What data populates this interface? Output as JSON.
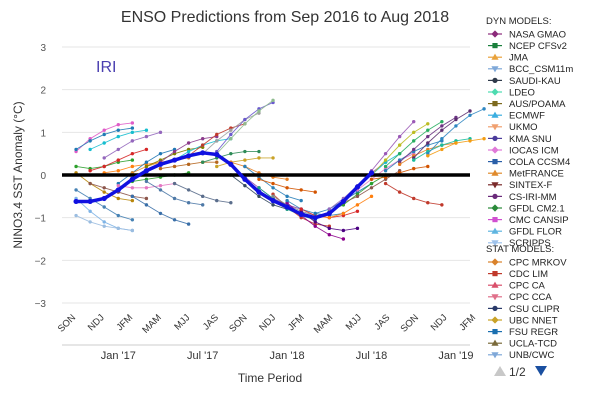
{
  "chart_data": {
    "type": "line",
    "title": "ENSO Predictions from Sep 2016 to Aug 2018",
    "xlabel": "Time Period",
    "ylabel": "NINO3.4 SST Anomaly (°C)",
    "ylim": [
      -3,
      3
    ],
    "yticks": [
      -3,
      -2,
      -1,
      0,
      1,
      2,
      3
    ],
    "season_labels": [
      "SON",
      "NDJ",
      "JFM",
      "MAM",
      "MJJ",
      "JAS",
      "SON",
      "NDJ",
      "JFM",
      "MAM",
      "MJJ",
      "JAS",
      "SON",
      "NDJ",
      "JFM"
    ],
    "month_labels": [
      {
        "label": "Jan '17",
        "month_index": 4
      },
      {
        "label": "Jul '17",
        "month_index": 10
      },
      {
        "label": "Jan '18",
        "month_index": 16
      },
      {
        "label": "Jul '18",
        "month_index": 22
      },
      {
        "label": "Jan '19",
        "month_index": 28
      }
    ],
    "month_index_range": [
      0,
      29
    ],
    "zero_line": 0,
    "watermark": "IRI",
    "observed": {
      "color": "#1010e0",
      "points": [
        [
          1,
          -0.62
        ],
        [
          2,
          -0.62
        ],
        [
          3,
          -0.55
        ],
        [
          4,
          -0.35
        ],
        [
          5,
          -0.1
        ],
        [
          6,
          0.1
        ],
        [
          7,
          0.25
        ],
        [
          8,
          0.35
        ],
        [
          9,
          0.45
        ],
        [
          10,
          0.52
        ],
        [
          11,
          0.48
        ],
        [
          12,
          0.25
        ],
        [
          13,
          -0.1
        ],
        [
          14,
          -0.4
        ],
        [
          15,
          -0.6
        ],
        [
          16,
          -0.75
        ],
        [
          17,
          -0.92
        ],
        [
          18,
          -1.0
        ],
        [
          19,
          -0.9
        ],
        [
          20,
          -0.62
        ],
        [
          21,
          -0.28
        ],
        [
          22,
          0.05
        ]
      ]
    },
    "model_runs": [
      {
        "start": 1,
        "values": [
          0.55,
          0.85,
          1.05,
          1.18,
          1.22
        ],
        "color": "#e05cc8"
      },
      {
        "start": 1,
        "values": [
          0.6,
          0.8,
          0.95,
          1.05,
          1.1
        ],
        "color": "#1f7ab4"
      },
      {
        "start": 1,
        "values": [
          0.2,
          0.15,
          0.2,
          0.3,
          0.35
        ],
        "color": "#2ca02c"
      },
      {
        "start": 1,
        "values": [
          -0.35,
          -0.55,
          -0.75,
          -0.95,
          -1.05
        ],
        "color": "#4682b4"
      },
      {
        "start": 1,
        "values": [
          -0.55,
          -0.85,
          -1.1,
          -1.25,
          -1.3
        ],
        "color": "#7fb4e6"
      },
      {
        "start": 1,
        "values": [
          0.05,
          -0.2,
          -0.4,
          -0.55,
          -0.6
        ],
        "color": "#b8860b"
      },
      {
        "start": 1,
        "values": [
          -0.95,
          -1.1,
          -1.2,
          -1.25,
          -1.3
        ],
        "color": "#9bbde0"
      },
      {
        "start": 2,
        "values": [
          0.1,
          0.2,
          0.35,
          0.5,
          0.6
        ],
        "color": "#d62728"
      },
      {
        "start": 2,
        "values": [
          -0.2,
          -0.3,
          -0.4,
          -0.5,
          -0.55
        ],
        "color": "#8c564b"
      },
      {
        "start": 2,
        "values": [
          0.6,
          0.75,
          0.9,
          1.0,
          1.05
        ],
        "color": "#17becf"
      },
      {
        "start": 3,
        "values": [
          0.05,
          0.1,
          0.2,
          0.25,
          0.3
        ],
        "color": "#ff7f0e"
      },
      {
        "start": 3,
        "values": [
          0.4,
          0.6,
          0.8,
          0.9,
          1.0
        ],
        "color": "#9467bd"
      },
      {
        "start": 4,
        "values": [
          -0.2,
          0.05,
          0.3,
          0.5,
          0.6
        ],
        "color": "#1f77b4"
      },
      {
        "start": 4,
        "values": [
          -0.25,
          -0.3,
          -0.3,
          -0.25,
          -0.2
        ],
        "color": "#e377c2"
      },
      {
        "start": 5,
        "values": [
          0.05,
          0.2,
          0.3,
          0.35,
          0.4
        ],
        "color": "#e08a2c"
      },
      {
        "start": 5,
        "values": [
          -0.15,
          -0.1,
          -0.05,
          0.0,
          0.05
        ],
        "color": "#2ca02c"
      },
      {
        "start": 5,
        "values": [
          -0.5,
          -0.7,
          -0.9,
          -1.05,
          -1.15
        ],
        "color": "#3a6fa8"
      },
      {
        "start": 6,
        "values": [
          0.2,
          0.35,
          0.5,
          0.6,
          0.65
        ],
        "color": "#808000"
      },
      {
        "start": 6,
        "values": [
          -0.15,
          -0.35,
          -0.55,
          -0.65,
          -0.7
        ],
        "color": "#4e79a7"
      },
      {
        "start": 7,
        "values": [
          0.3,
          0.55,
          0.75,
          0.85,
          0.9
        ],
        "color": "#8b3a8b"
      },
      {
        "start": 7,
        "values": [
          0.15,
          0.2,
          0.25,
          0.3,
          0.3
        ],
        "color": "#b5651d"
      },
      {
        "start": 8,
        "values": [
          0.35,
          0.55,
          0.7,
          0.8,
          0.85
        ],
        "color": "#17becf"
      },
      {
        "start": 8,
        "values": [
          -0.2,
          -0.35,
          -0.5,
          -0.6,
          -0.65
        ],
        "color": "#5b6e8c"
      },
      {
        "start": 9,
        "values": [
          0.45,
          0.7,
          0.95,
          1.1,
          1.2
        ],
        "color": "#c0392b"
      },
      {
        "start": 10,
        "values": [
          0.5,
          0.8,
          1.05,
          1.3,
          1.45
        ],
        "color": "#9e9e9e"
      },
      {
        "start": 10,
        "values": [
          0.3,
          0.4,
          0.5,
          0.55,
          0.55
        ],
        "color": "#2e8b57"
      },
      {
        "start": 11,
        "values": [
          0.55,
          0.95,
          1.3,
          1.55,
          1.7
        ],
        "color": "#6a5acd"
      },
      {
        "start": 11,
        "values": [
          0.5,
          0.85,
          1.2,
          1.5,
          1.75
        ],
        "color": "#8fbc8f"
      },
      {
        "start": 11,
        "values": [
          0.2,
          0.3,
          0.35,
          0.4,
          0.4
        ],
        "color": "#c9a227"
      },
      {
        "start": 12,
        "values": [
          0.3,
          0.2,
          0.05,
          -0.05,
          -0.1
        ],
        "color": "#e67e22"
      },
      {
        "start": 12,
        "values": [
          0.0,
          -0.25,
          -0.5,
          -0.7,
          -0.8
        ],
        "color": "#34495e"
      },
      {
        "start": 13,
        "values": [
          0.2,
          -0.05,
          -0.3,
          -0.5,
          -0.6
        ],
        "color": "#2980b9"
      },
      {
        "start": 13,
        "values": [
          -0.05,
          -0.3,
          -0.55,
          -0.7,
          -0.8
        ],
        "color": "#8e44ad"
      },
      {
        "start": 14,
        "values": [
          -0.3,
          -0.55,
          -0.8,
          -0.95,
          -1.05
        ],
        "color": "#16a085"
      },
      {
        "start": 14,
        "values": [
          -0.1,
          -0.2,
          -0.3,
          -0.35,
          -0.4
        ],
        "color": "#d35400"
      },
      {
        "start": 15,
        "values": [
          -0.45,
          -0.75,
          -1.0,
          -1.15,
          -1.2
        ],
        "color": "#c0392b"
      },
      {
        "start": 15,
        "values": [
          -0.5,
          -0.7,
          -0.85,
          -0.95,
          -0.9
        ],
        "color": "#7f8c8d"
      },
      {
        "start": 16,
        "values": [
          -0.65,
          -0.95,
          -1.2,
          -1.4,
          -1.5
        ],
        "color": "#8b008b"
      },
      {
        "start": 16,
        "values": [
          -0.6,
          -0.8,
          -0.9,
          -0.95,
          -0.9
        ],
        "color": "#2c7fb8"
      },
      {
        "start": 17,
        "values": [
          -0.85,
          -1.1,
          -1.25,
          -1.3,
          -1.25
        ],
        "color": "#4b0082"
      },
      {
        "start": 17,
        "values": [
          -0.8,
          -0.95,
          -1.0,
          -0.95,
          -0.85
        ],
        "color": "#d62728"
      },
      {
        "start": 18,
        "values": [
          -0.95,
          -1.0,
          -0.9,
          -0.7,
          -0.5
        ],
        "color": "#ff7f0e"
      },
      {
        "start": 18,
        "values": [
          -0.9,
          -0.8,
          -0.6,
          -0.4,
          -0.2
        ],
        "color": "#1f77b4"
      },
      {
        "start": 19,
        "values": [
          -0.85,
          -0.7,
          -0.45,
          -0.2,
          0.0
        ],
        "color": "#2ca02c"
      },
      {
        "start": 19,
        "values": [
          -0.8,
          -0.55,
          -0.25,
          0.05,
          0.3
        ],
        "color": "#9467bd"
      },
      {
        "start": 20,
        "values": [
          -0.6,
          -0.3,
          0.0,
          0.3,
          0.5
        ],
        "color": "#17becf"
      },
      {
        "start": 20,
        "values": [
          -0.65,
          -0.5,
          -0.3,
          -0.1,
          0.1
        ],
        "color": "#8c564b"
      },
      {
        "start": 21,
        "values": [
          -0.3,
          0.1,
          0.5,
          0.9,
          1.25
        ],
        "color": "#9b59b6"
      },
      {
        "start": 21,
        "values": [
          -0.35,
          -0.1,
          0.15,
          0.35,
          0.5
        ],
        "color": "#e377c2"
      },
      {
        "start": 22,
        "values": [
          0.0,
          0.35,
          0.7,
          1.0,
          1.2
        ],
        "color": "#bcbd22"
      },
      {
        "start": 22,
        "values": [
          -0.1,
          -0.05,
          0.05,
          0.15,
          0.2
        ],
        "color": "#d35400"
      },
      {
        "start": 23,
        "values": [
          0.2,
          0.5,
          0.8,
          1.05,
          1.25
        ],
        "color": "#27ae60"
      },
      {
        "start": 23,
        "values": [
          0.1,
          0.35,
          0.55,
          0.7,
          0.8
        ],
        "color": "#2980b9"
      },
      {
        "start": 23,
        "values": [
          -0.2,
          -0.4,
          -0.55,
          -0.65,
          -0.7
        ],
        "color": "#c0392b"
      },
      {
        "start": 24,
        "values": [
          0.3,
          0.6,
          0.9,
          1.15,
          1.35
        ],
        "color": "#6c3483"
      },
      {
        "start": 24,
        "values": [
          0.25,
          0.45,
          0.6,
          0.7,
          0.75
        ],
        "color": "#e67e22"
      },
      {
        "start": 25,
        "values": [
          0.4,
          0.75,
          1.05,
          1.3,
          1.5
        ],
        "color": "#5b2c6f"
      },
      {
        "start": 25,
        "values": [
          0.35,
          0.55,
          0.7,
          0.8,
          0.85
        ],
        "color": "#1abc9c"
      },
      {
        "start": 26,
        "values": [
          0.5,
          0.85,
          1.15,
          1.4,
          1.55
        ],
        "color": "#2e86c1"
      },
      {
        "start": 26,
        "values": [
          0.45,
          0.6,
          0.75,
          0.8,
          0.85
        ],
        "color": "#f39c12"
      }
    ],
    "legend": {
      "dyn_header": "DYN MODELS:",
      "dyn": [
        {
          "name": "NASA GMAO",
          "color": "#8b2a7a",
          "symbol": "diamond"
        },
        {
          "name": "NCEP CFSv2",
          "color": "#1a7f3c",
          "symbol": "square"
        },
        {
          "name": "JMA",
          "color": "#e9a23b",
          "symbol": "triangle"
        },
        {
          "name": "BCC_CSM11m",
          "color": "#7fa8d8",
          "symbol": "triangle-down"
        },
        {
          "name": "SAUDI-KAU",
          "color": "#2f3a4a",
          "symbol": "circle"
        },
        {
          "name": "LDEO",
          "color": "#4ddbb0",
          "symbol": "diamond"
        },
        {
          "name": "AUS/POAMA",
          "color": "#7d6a1e",
          "symbol": "square"
        },
        {
          "name": "ECMWF",
          "color": "#3aaee0",
          "symbol": "triangle"
        },
        {
          "name": "UKMO",
          "color": "#f0a070",
          "symbol": "triangle-down"
        },
        {
          "name": "KMA SNU",
          "color": "#4b3c9c",
          "symbol": "circle"
        },
        {
          "name": "IOCAS ICM",
          "color": "#e07ad8",
          "symbol": "diamond"
        },
        {
          "name": "COLA CCSM4",
          "color": "#2a5fa8",
          "symbol": "square"
        },
        {
          "name": "MetFRANCE",
          "color": "#e08a2c",
          "symbol": "triangle"
        },
        {
          "name": "SINTEX-F",
          "color": "#7a2a2a",
          "symbol": "triangle-down"
        },
        {
          "name": "CS-IRI-MM",
          "color": "#6a2a7a",
          "symbol": "circle"
        },
        {
          "name": "GFDL CM2.1",
          "color": "#2a8a3a",
          "symbol": "diamond"
        },
        {
          "name": "CMC CANSIP",
          "color": "#d04fd0",
          "symbol": "square"
        },
        {
          "name": "GFDL FLOR",
          "color": "#5fb5e0",
          "symbol": "triangle"
        },
        {
          "name": "SCRIPPS",
          "color": "#9fc3ec",
          "symbol": "triangle-down"
        }
      ],
      "stat_header": "STAT MODELS:",
      "stat": [
        {
          "name": "CPC MRKOV",
          "color": "#d9822b",
          "symbol": "diamond"
        },
        {
          "name": "CDC LIM",
          "color": "#c0392b",
          "symbol": "square"
        },
        {
          "name": "CPC CA",
          "color": "#d94f6a",
          "symbol": "triangle"
        },
        {
          "name": "CPC CCA",
          "color": "#e0708a",
          "symbol": "triangle-down"
        },
        {
          "name": "CSU CLIPR",
          "color": "#2a3a6a",
          "symbol": "circle"
        },
        {
          "name": "UBC NNET",
          "color": "#c9a227",
          "symbol": "diamond"
        },
        {
          "name": "FSU REGR",
          "color": "#1a6fb0",
          "symbol": "square"
        },
        {
          "name": "UCLA-TCD",
          "color": "#7a6a3a",
          "symbol": "triangle"
        },
        {
          "name": "UNB/CWC",
          "color": "#7fa8d8",
          "symbol": "triangle-down"
        }
      ],
      "pager": "1/2"
    }
  }
}
